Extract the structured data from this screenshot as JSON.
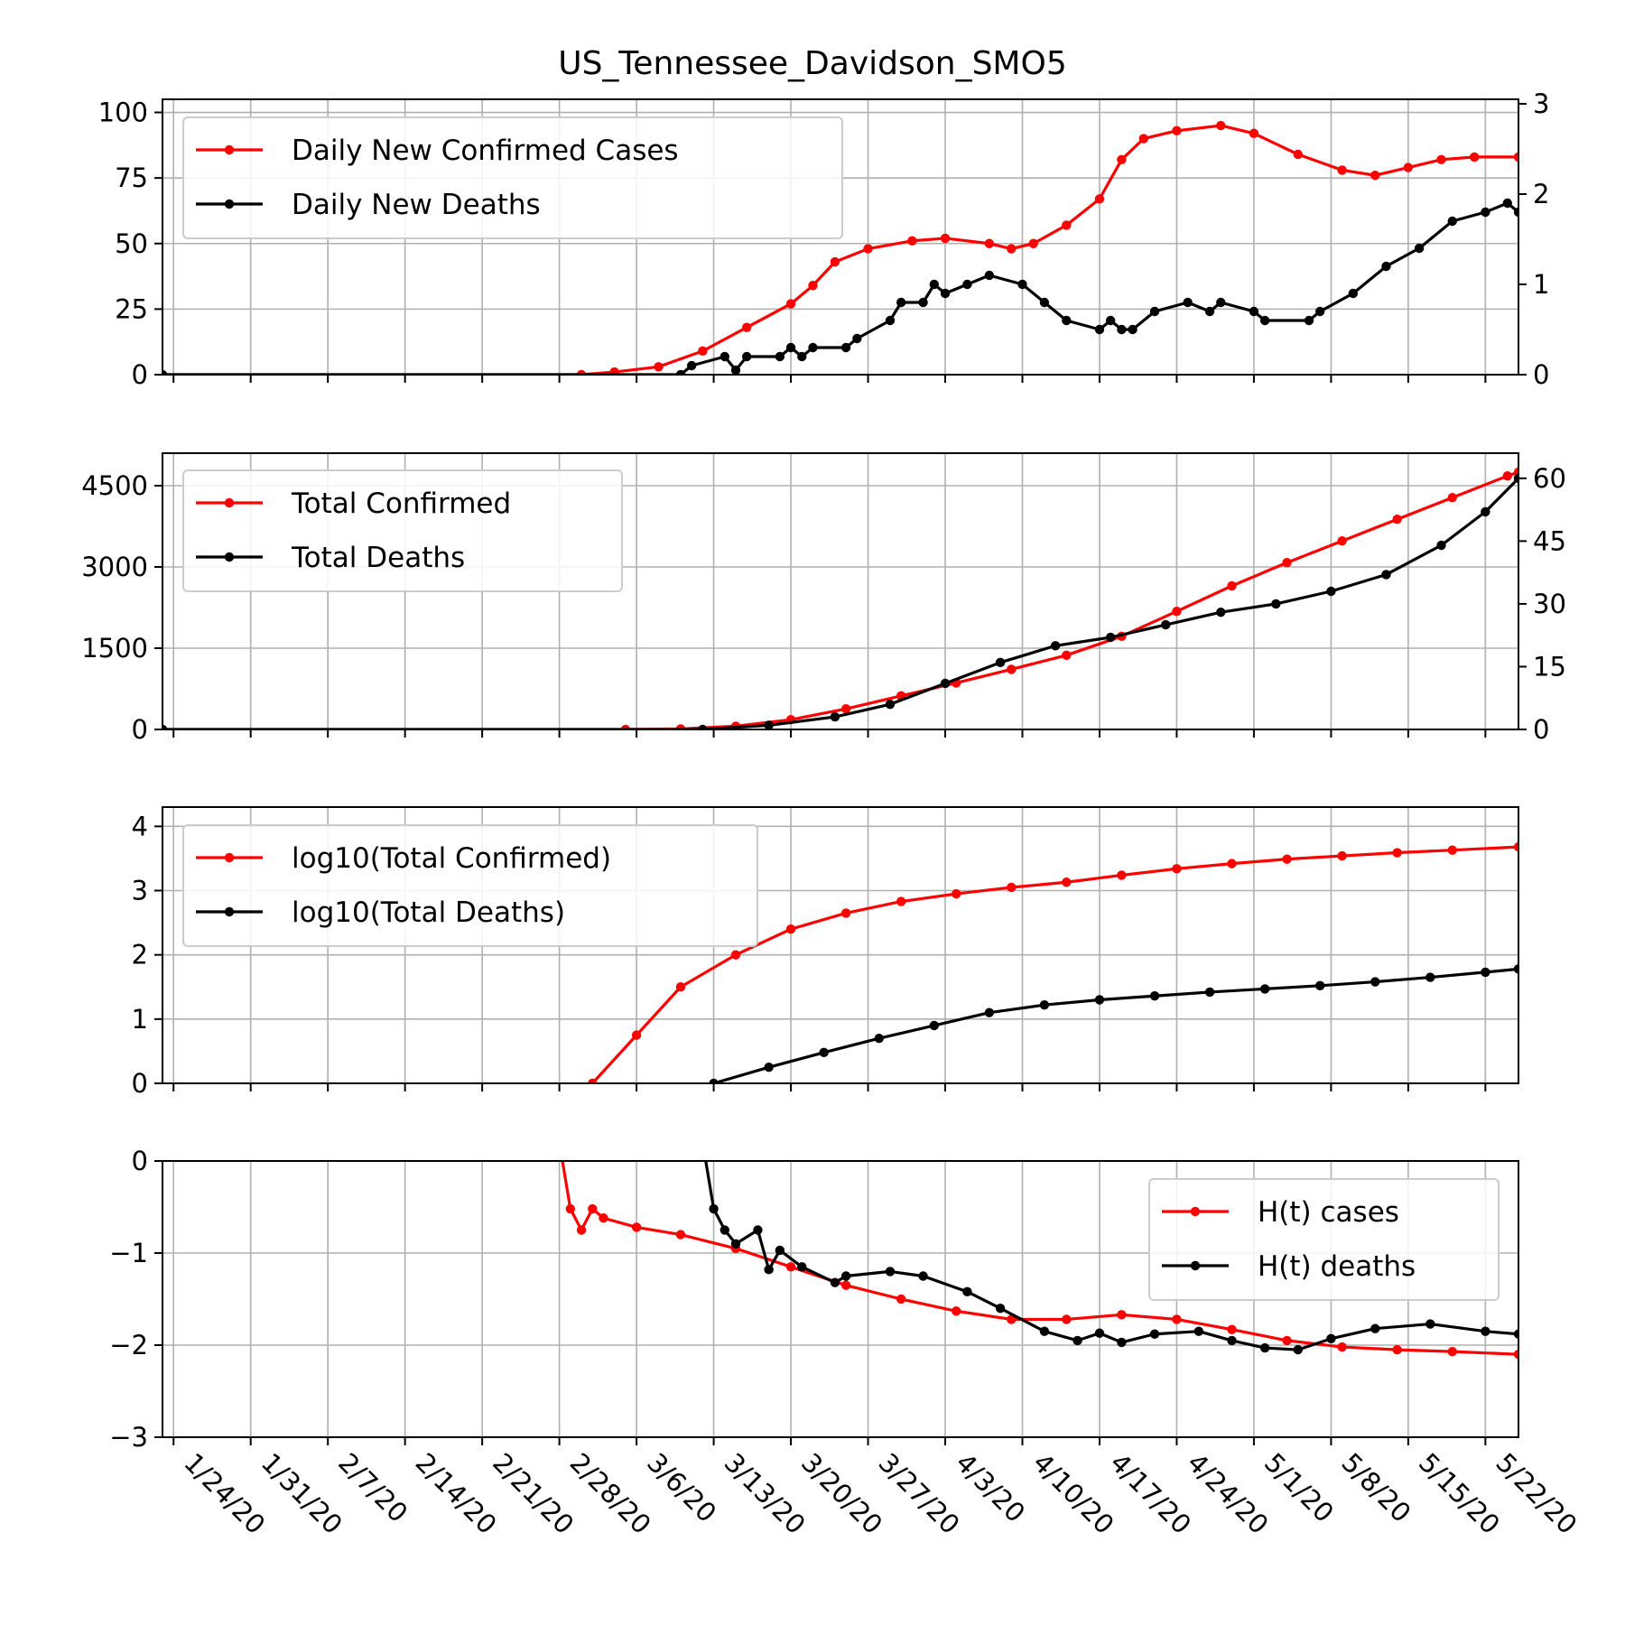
{
  "title": "US_Tennessee_Davidson_SMO5",
  "x_tick_labels": [
    "1/24/20",
    "1/31/20",
    "2/7/20",
    "2/14/20",
    "2/21/20",
    "2/28/20",
    "3/6/20",
    "3/13/20",
    "3/20/20",
    "3/27/20",
    "4/3/20",
    "4/10/20",
    "4/17/20",
    "4/24/20",
    "5/1/20",
    "5/8/20",
    "5/15/20",
    "5/22/20"
  ],
  "colors": {
    "cases": "#ff0000",
    "deaths": "#000000"
  },
  "chart_data": [
    {
      "type": "line",
      "x_start": "1/23/20",
      "x_end": "5/25/20",
      "ylim": [
        0,
        105
      ],
      "y_ticks": [
        "0",
        "25",
        "50",
        "75",
        "100"
      ],
      "y2lim": [
        0,
        3.05
      ],
      "y2_ticks": [
        "0",
        "1",
        "2",
        "3"
      ],
      "legend": "top-left",
      "grid": true,
      "series": [
        {
          "name": "Daily New Confirmed Cases",
          "axis": "left",
          "color": "#ff0000",
          "points": [
            [
              "1/23/20",
              0
            ],
            [
              "3/1/20",
              0
            ],
            [
              "3/4/20",
              1
            ],
            [
              "3/8/20",
              3
            ],
            [
              "3/12/20",
              9
            ],
            [
              "3/16/20",
              18
            ],
            [
              "3/20/20",
              27
            ],
            [
              "3/22/20",
              34
            ],
            [
              "3/24/20",
              43
            ],
            [
              "3/27/20",
              48
            ],
            [
              "3/31/20",
              51
            ],
            [
              "4/3/20",
              52
            ],
            [
              "4/7/20",
              50
            ],
            [
              "4/9/20",
              48
            ],
            [
              "4/11/20",
              50
            ],
            [
              "4/14/20",
              57
            ],
            [
              "4/17/20",
              67
            ],
            [
              "4/19/20",
              82
            ],
            [
              "4/21/20",
              90
            ],
            [
              "4/24/20",
              93
            ],
            [
              "4/28/20",
              95
            ],
            [
              "5/1/20",
              92
            ],
            [
              "5/5/20",
              84
            ],
            [
              "5/9/20",
              78
            ],
            [
              "5/12/20",
              76
            ],
            [
              "5/15/20",
              79
            ],
            [
              "5/18/20",
              82
            ],
            [
              "5/21/20",
              83
            ],
            [
              "5/25/20",
              83
            ]
          ]
        },
        {
          "name": "Daily New Deaths",
          "axis": "right",
          "color": "#000000",
          "points": [
            [
              "1/23/20",
              0
            ],
            [
              "3/10/20",
              0
            ],
            [
              "3/11/20",
              0.1
            ],
            [
              "3/14/20",
              0.2
            ],
            [
              "3/15/20",
              0.05
            ],
            [
              "3/16/20",
              0.2
            ],
            [
              "3/19/20",
              0.2
            ],
            [
              "3/20/20",
              0.3
            ],
            [
              "3/21/20",
              0.2
            ],
            [
              "3/22/20",
              0.3
            ],
            [
              "3/25/20",
              0.3
            ],
            [
              "3/26/20",
              0.4
            ],
            [
              "3/29/20",
              0.6
            ],
            [
              "3/30/20",
              0.8
            ],
            [
              "4/1/20",
              0.8
            ],
            [
              "4/2/20",
              1.0
            ],
            [
              "4/3/20",
              0.9
            ],
            [
              "4/5/20",
              1.0
            ],
            [
              "4/7/20",
              1.1
            ],
            [
              "4/10/20",
              1.0
            ],
            [
              "4/12/20",
              0.8
            ],
            [
              "4/14/20",
              0.6
            ],
            [
              "4/17/20",
              0.5
            ],
            [
              "4/18/20",
              0.6
            ],
            [
              "4/19/20",
              0.5
            ],
            [
              "4/20/20",
              0.5
            ],
            [
              "4/22/20",
              0.7
            ],
            [
              "4/25/20",
              0.8
            ],
            [
              "4/27/20",
              0.7
            ],
            [
              "4/28/20",
              0.8
            ],
            [
              "5/1/20",
              0.7
            ],
            [
              "5/2/20",
              0.6
            ],
            [
              "5/6/20",
              0.6
            ],
            [
              "5/7/20",
              0.7
            ],
            [
              "5/10/20",
              0.9
            ],
            [
              "5/13/20",
              1.2
            ],
            [
              "5/16/20",
              1.4
            ],
            [
              "5/19/20",
              1.7
            ],
            [
              "5/22/20",
              1.8
            ],
            [
              "5/24/20",
              1.9
            ],
            [
              "5/25/20",
              1.8
            ]
          ]
        }
      ]
    },
    {
      "type": "line",
      "x_start": "1/23/20",
      "x_end": "5/25/20",
      "ylim": [
        0,
        5100
      ],
      "y_ticks": [
        "0",
        "1500",
        "3000",
        "4500"
      ],
      "y2lim": [
        0,
        66
      ],
      "y2_ticks": [
        "0",
        "15",
        "30",
        "45",
        "60"
      ],
      "legend": "top-left",
      "grid": true,
      "series": [
        {
          "name": "Total Confirmed",
          "axis": "left",
          "color": "#ff0000",
          "points": [
            [
              "1/23/20",
              0
            ],
            [
              "3/5/20",
              0
            ],
            [
              "3/10/20",
              10
            ],
            [
              "3/15/20",
              60
            ],
            [
              "3/20/20",
              180
            ],
            [
              "3/25/20",
              380
            ],
            [
              "3/30/20",
              620
            ],
            [
              "4/4/20",
              860
            ],
            [
              "4/9/20",
              1110
            ],
            [
              "4/14/20",
              1370
            ],
            [
              "4/19/20",
              1720
            ],
            [
              "4/24/20",
              2180
            ],
            [
              "4/29/20",
              2650
            ],
            [
              "5/4/20",
              3080
            ],
            [
              "5/9/20",
              3480
            ],
            [
              "5/14/20",
              3880
            ],
            [
              "5/19/20",
              4280
            ],
            [
              "5/24/20",
              4680
            ],
            [
              "5/25/20",
              4750
            ]
          ]
        },
        {
          "name": "Total Deaths",
          "axis": "right",
          "color": "#000000",
          "points": [
            [
              "1/23/20",
              0
            ],
            [
              "3/12/20",
              0
            ],
            [
              "3/18/20",
              1
            ],
            [
              "3/24/20",
              3
            ],
            [
              "3/29/20",
              6
            ],
            [
              "4/3/20",
              11
            ],
            [
              "4/8/20",
              16
            ],
            [
              "4/13/20",
              20
            ],
            [
              "4/18/20",
              22
            ],
            [
              "4/23/20",
              25
            ],
            [
              "4/28/20",
              28
            ],
            [
              "5/3/20",
              30
            ],
            [
              "5/8/20",
              33
            ],
            [
              "5/13/20",
              37
            ],
            [
              "5/18/20",
              44
            ],
            [
              "5/22/20",
              52
            ],
            [
              "5/25/20",
              60
            ]
          ]
        }
      ]
    },
    {
      "type": "line",
      "x_start": "1/23/20",
      "x_end": "5/25/20",
      "ylim": [
        0,
        4.3
      ],
      "y_ticks": [
        "0",
        "1",
        "2",
        "3",
        "4"
      ],
      "legend": "top-left",
      "grid": true,
      "series": [
        {
          "name": "log10(Total Confirmed)",
          "color": "#ff0000",
          "points": [
            [
              "3/2/20",
              0
            ],
            [
              "3/6/20",
              0.75
            ],
            [
              "3/10/20",
              1.5
            ],
            [
              "3/15/20",
              2.0
            ],
            [
              "3/20/20",
              2.4
            ],
            [
              "3/25/20",
              2.65
            ],
            [
              "3/30/20",
              2.83
            ],
            [
              "4/4/20",
              2.95
            ],
            [
              "4/9/20",
              3.05
            ],
            [
              "4/14/20",
              3.13
            ],
            [
              "4/19/20",
              3.24
            ],
            [
              "4/24/20",
              3.34
            ],
            [
              "4/29/20",
              3.42
            ],
            [
              "5/4/20",
              3.49
            ],
            [
              "5/9/20",
              3.54
            ],
            [
              "5/14/20",
              3.59
            ],
            [
              "5/19/20",
              3.63
            ],
            [
              "5/25/20",
              3.68
            ]
          ]
        },
        {
          "name": "log10(Total Deaths)",
          "color": "#000000",
          "points": [
            [
              "3/13/20",
              0
            ],
            [
              "3/18/20",
              0.25
            ],
            [
              "3/23/20",
              0.48
            ],
            [
              "3/28/20",
              0.7
            ],
            [
              "4/2/20",
              0.9
            ],
            [
              "4/7/20",
              1.1
            ],
            [
              "4/12/20",
              1.22
            ],
            [
              "4/17/20",
              1.3
            ],
            [
              "4/22/20",
              1.36
            ],
            [
              "4/27/20",
              1.42
            ],
            [
              "5/2/20",
              1.47
            ],
            [
              "5/7/20",
              1.52
            ],
            [
              "5/12/20",
              1.58
            ],
            [
              "5/17/20",
              1.65
            ],
            [
              "5/22/20",
              1.73
            ],
            [
              "5/25/20",
              1.78
            ]
          ]
        }
      ]
    },
    {
      "type": "line",
      "x_start": "1/23/20",
      "x_end": "5/25/20",
      "ylim": [
        -3,
        0
      ],
      "y_ticks": [
        "−3",
        "−2",
        "−1",
        "0"
      ],
      "legend": "top-right",
      "grid": true,
      "series": [
        {
          "name": "H(t) cases",
          "color": "#ff0000",
          "points": [
            [
              "2/28/20",
              0.2
            ],
            [
              "2/29/20",
              -0.52
            ],
            [
              "3/1/20",
              -0.75
            ],
            [
              "3/2/20",
              -0.52
            ],
            [
              "3/3/20",
              -0.62
            ],
            [
              "3/6/20",
              -0.72
            ],
            [
              "3/10/20",
              -0.8
            ],
            [
              "3/15/20",
              -0.95
            ],
            [
              "3/20/20",
              -1.15
            ],
            [
              "3/25/20",
              -1.35
            ],
            [
              "3/30/20",
              -1.5
            ],
            [
              "4/4/20",
              -1.63
            ],
            [
              "4/9/20",
              -1.72
            ],
            [
              "4/14/20",
              -1.72
            ],
            [
              "4/19/20",
              -1.67
            ],
            [
              "4/24/20",
              -1.72
            ],
            [
              "4/29/20",
              -1.83
            ],
            [
              "5/4/20",
              -1.95
            ],
            [
              "5/9/20",
              -2.02
            ],
            [
              "5/14/20",
              -2.05
            ],
            [
              "5/19/20",
              -2.07
            ],
            [
              "5/25/20",
              -2.1
            ]
          ]
        },
        {
          "name": "H(t) deaths",
          "color": "#000000",
          "points": [
            [
              "3/12/20",
              0.2
            ],
            [
              "3/13/20",
              -0.52
            ],
            [
              "3/14/20",
              -0.75
            ],
            [
              "3/15/20",
              -0.9
            ],
            [
              "3/17/20",
              -0.75
            ],
            [
              "3/18/20",
              -1.18
            ],
            [
              "3/19/20",
              -0.97
            ],
            [
              "3/21/20",
              -1.15
            ],
            [
              "3/24/20",
              -1.32
            ],
            [
              "3/25/20",
              -1.25
            ],
            [
              "3/29/20",
              -1.2
            ],
            [
              "4/1/20",
              -1.25
            ],
            [
              "4/5/20",
              -1.42
            ],
            [
              "4/8/20",
              -1.6
            ],
            [
              "4/12/20",
              -1.85
            ],
            [
              "4/15/20",
              -1.95
            ],
            [
              "4/17/20",
              -1.87
            ],
            [
              "4/19/20",
              -1.97
            ],
            [
              "4/22/20",
              -1.88
            ],
            [
              "4/26/20",
              -1.85
            ],
            [
              "4/29/20",
              -1.95
            ],
            [
              "5/2/20",
              -2.03
            ],
            [
              "5/5/20",
              -2.05
            ],
            [
              "5/8/20",
              -1.93
            ],
            [
              "5/12/20",
              -1.82
            ],
            [
              "5/17/20",
              -1.77
            ],
            [
              "5/22/20",
              -1.85
            ],
            [
              "5/25/20",
              -1.88
            ]
          ]
        }
      ]
    }
  ]
}
